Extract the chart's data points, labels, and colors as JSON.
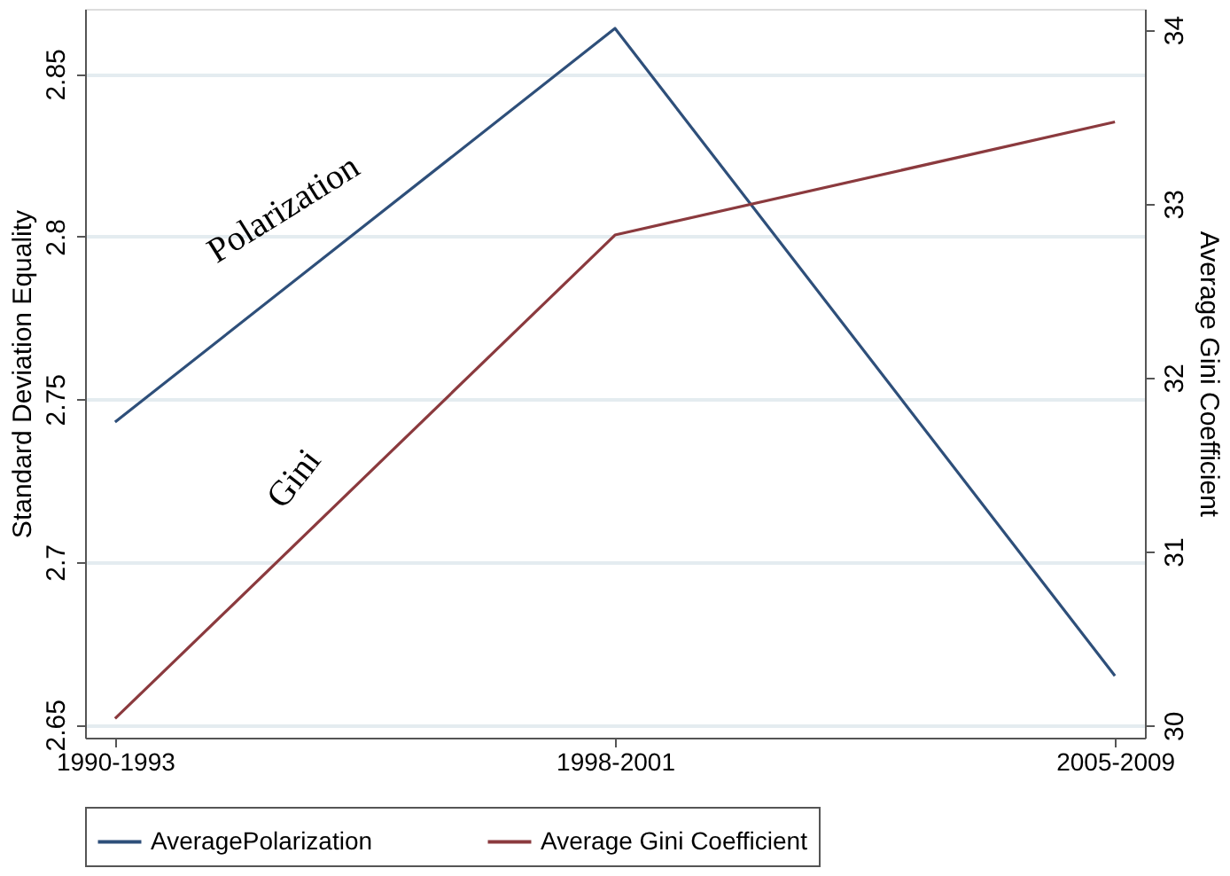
{
  "chart_data": {
    "type": "line",
    "categories": [
      "1990-1993",
      "1998-2001",
      "2005-2009"
    ],
    "series": [
      {
        "name": "AveragePolarization",
        "color": "#2e4f7a",
        "values": [
          2.743,
          2.864,
          2.665
        ]
      },
      {
        "name": "Average Gini Coefficient",
        "color": "#8b3a3e",
        "values": [
          30.04,
          32.82,
          33.47
        ],
        "axis": "y2"
      }
    ],
    "ylabel": "Standard Deviation Equality",
    "y2label": "Average Gini Coefficient",
    "ylim": [
      2.646,
      2.87
    ],
    "yticks": [
      2.65,
      {
        "value": 2.7,
        "label": "2.7"
      },
      2.75,
      {
        "value": 2.8,
        "label": "2.8"
      },
      2.85
    ],
    "y2lim": [
      29.93,
      34.12
    ],
    "y2ticks": [
      30,
      31,
      32,
      33,
      34
    ],
    "annotations": [
      "Polarization",
      "Gini"
    ],
    "grid": "y",
    "legend": "bottom",
    "marker": "none",
    "line_style": "solid"
  }
}
